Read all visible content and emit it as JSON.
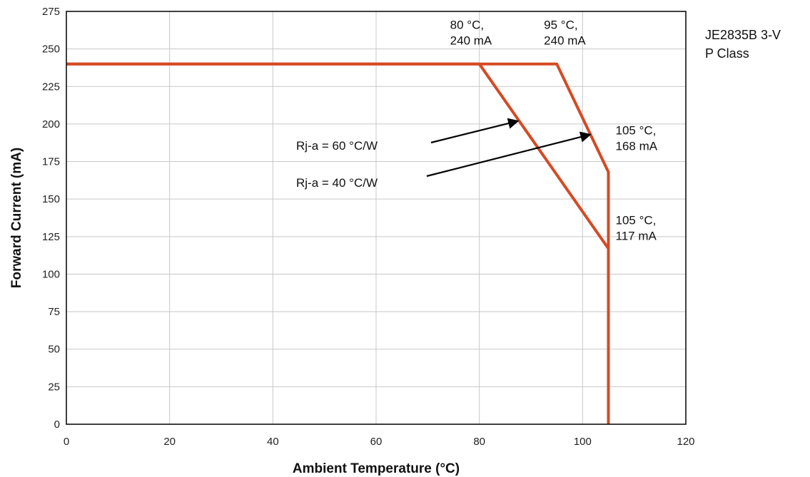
{
  "chart_data": {
    "type": "line",
    "title": "",
    "xlabel": "Ambient Temperature (°C)",
    "ylabel": "Forward Current (mA)",
    "xlim": [
      0,
      120
    ],
    "ylim": [
      0,
      275
    ],
    "xticks": [
      0,
      20,
      40,
      60,
      80,
      100,
      120
    ],
    "yticks": [
      0,
      25,
      50,
      75,
      100,
      125,
      150,
      175,
      200,
      225,
      250,
      275
    ],
    "grid": true,
    "legend": "none",
    "series": [
      {
        "name": "Rj-a = 60 °C/W",
        "color": "#d54a24",
        "x": [
          0,
          80,
          105,
          105
        ],
        "y": [
          240,
          240,
          117,
          0
        ]
      },
      {
        "name": "Rj-a = 40 °C/W",
        "color": "#d54a24",
        "x": [
          0,
          95,
          105,
          105
        ],
        "y": [
          240,
          240,
          168,
          0
        ]
      }
    ],
    "annotations": [
      {
        "id": "p80",
        "lines": [
          "80 °C,",
          "240 mA"
        ],
        "x": 80,
        "y": 240
      },
      {
        "id": "p95",
        "lines": [
          "95 °C,",
          "240 mA"
        ],
        "x": 95,
        "y": 240
      },
      {
        "id": "p105a",
        "lines": [
          "105 °C,",
          "168 mA"
        ],
        "x": 105,
        "y": 168
      },
      {
        "id": "p105b",
        "lines": [
          "105 °C,",
          "117 mA"
        ],
        "x": 105,
        "y": 117
      }
    ],
    "arrows": [
      {
        "label": "Rj-a = 60 °C/W",
        "target_x": 87.5,
        "target_y": 202
      },
      {
        "label": "Rj-a = 40 °C/W",
        "target_x": 101.5,
        "target_y": 193
      }
    ]
  },
  "side_label": {
    "line1": "JE2835B 3-V",
    "line2": "P Class"
  }
}
